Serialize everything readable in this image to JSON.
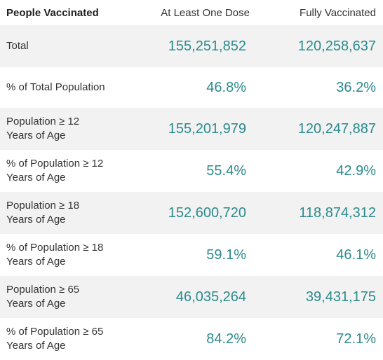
{
  "header": {
    "col_label": "People Vaccinated",
    "col_one_dose": "At Least One Dose",
    "col_fully": "Fully Vaccinated"
  },
  "rows": [
    {
      "label_line1": "Total",
      "label_line2": "",
      "one_dose": "155,251,852",
      "fully": "120,258,637"
    },
    {
      "label_line1": "% of Total Population",
      "label_line2": "",
      "one_dose": "46.8%",
      "fully": "36.2%"
    },
    {
      "label_line1": "Population ≥ 12",
      "label_line2": "Years of Age",
      "one_dose": "155,201,979",
      "fully": "120,247,887"
    },
    {
      "label_line1": "% of Population ≥ 12",
      "label_line2": "Years of Age",
      "one_dose": "55.4%",
      "fully": "42.9%"
    },
    {
      "label_line1": "Population ≥ 18",
      "label_line2": "Years of Age",
      "one_dose": "152,600,720",
      "fully": "118,874,312"
    },
    {
      "label_line1": "% of Population ≥ 18",
      "label_line2": "Years of Age",
      "one_dose": "59.1%",
      "fully": "46.1%"
    },
    {
      "label_line1": "Population ≥ 65",
      "label_line2": "Years of Age",
      "one_dose": "46,035,264",
      "fully": "39,431,175"
    },
    {
      "label_line1": "% of Population ≥ 65",
      "label_line2": "Years of Age",
      "one_dose": "84.2%",
      "fully": "72.1%"
    }
  ],
  "colors": {
    "value_text": "#2b8a8c",
    "row_shade": "#f2f2f2"
  }
}
